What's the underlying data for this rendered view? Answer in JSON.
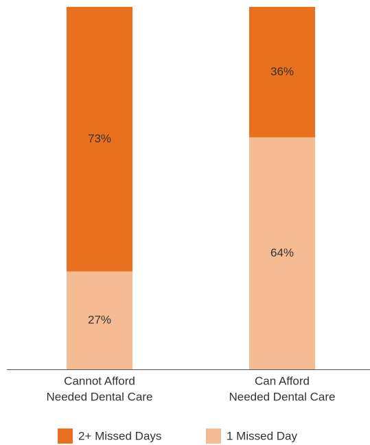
{
  "chart_data": {
    "type": "stacked-bar",
    "categories": [
      [
        "Cannot Afford",
        "Needed Dental Care"
      ],
      [
        "Can Afford",
        "Needed Dental Care"
      ]
    ],
    "series": [
      {
        "name": "1 Missed Day",
        "color": "#f5bb93",
        "values": [
          27,
          64
        ],
        "value_labels": [
          "27%",
          "64%"
        ]
      },
      {
        "name": "2+ Missed Days",
        "color": "#e8701f",
        "values": [
          73,
          36
        ],
        "value_labels": [
          "73%",
          "36%"
        ]
      }
    ],
    "ylim": [
      0,
      100
    ]
  }
}
